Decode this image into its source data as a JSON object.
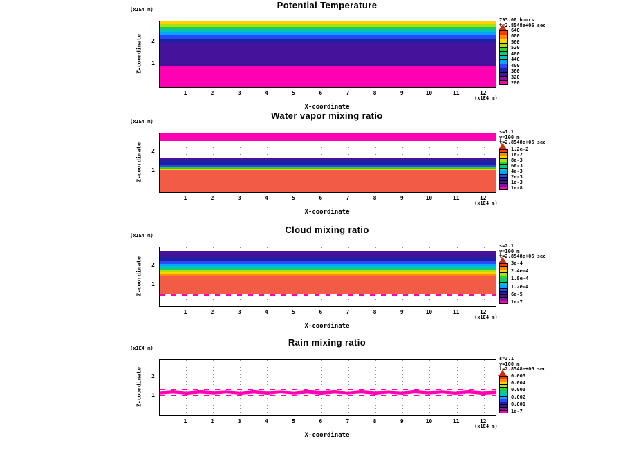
{
  "page": {
    "background": "#ffffff"
  },
  "chart_data": [
    {
      "type": "heatmap",
      "title": "Potential Temperature",
      "xlabel": "X-coordinate",
      "ylabel": "Z-coordinate",
      "x_unit": "(x1E4 m)",
      "y_unit": "(x1E4 m)",
      "x_ticks": [
        "1",
        "2",
        "3",
        "4",
        "5",
        "6",
        "7",
        "8",
        "9",
        "10",
        "11",
        "12"
      ],
      "y_ticks": [
        "2",
        "1"
      ],
      "annotations": [
        "793.00 hours",
        "t=2.8548e+06 sec"
      ],
      "colorbar": {
        "arrow_color": "#d42a10",
        "colors": [
          "#ff3b00",
          "#ff8c00",
          "#ffd300",
          "#a8e015",
          "#2bd12b",
          "#00cc7a",
          "#00c4c4",
          "#00a6ff",
          "#2a49ff",
          "#1f1fa0",
          "#44129b",
          "#8a12a0",
          "#ff00b2"
        ],
        "labels": [
          "640",
          "600",
          "560",
          "520",
          "480",
          "440",
          "400",
          "360",
          "320",
          "280"
        ]
      },
      "bands": [
        {
          "color": "#ffd300",
          "frac": 4
        },
        {
          "color": "#a8e015",
          "frac": 4
        },
        {
          "color": "#2bd12b",
          "frac": 4
        },
        {
          "color": "#00c4c4",
          "frac": 4
        },
        {
          "color": "#00a6ff",
          "frac": 5
        },
        {
          "color": "#2a49ff",
          "frac": 6
        },
        {
          "color": "#1f1fa0",
          "frac": 6
        },
        {
          "color": "#44129b",
          "frac": 34
        },
        {
          "color": "#ff00b2",
          "frac": 33
        }
      ]
    },
    {
      "type": "heatmap",
      "title": "Water vapor mixing ratio",
      "xlabel": "X-coordinate",
      "ylabel": "Z-coordinate",
      "x_unit": "(x1E4 m)",
      "y_unit": "(x1E4 m)",
      "x_ticks": [
        "1",
        "2",
        "3",
        "4",
        "5",
        "6",
        "7",
        "8",
        "9",
        "10",
        "11",
        "12"
      ],
      "y_ticks": [
        "2",
        "1"
      ],
      "annotations": [
        "s=1.1",
        "y=100 m",
        "t=2.8548e+06 sec"
      ],
      "colorbar": {
        "arrow_color": "#d42a10",
        "colors": [
          "#ff3b00",
          "#ff8c00",
          "#ffd300",
          "#a8e015",
          "#2bd12b",
          "#00cc7a",
          "#00c4c4",
          "#00a6ff",
          "#2a49ff",
          "#1f1fa0",
          "#44129b",
          "#8a12a0",
          "#ff00b2"
        ],
        "labels": [
          "1.2e-2",
          "1e-2",
          "8e-3",
          "6e-3",
          "4e-3",
          "2e-3",
          "1e-3",
          "1e-8"
        ]
      },
      "bands": [
        {
          "color": "#ff00b2",
          "frac": 13
        },
        {
          "color": null,
          "frac": 29
        },
        {
          "color": "#44129b",
          "frac": 3
        },
        {
          "color": "#1f1fa0",
          "frac": 9
        },
        {
          "color": "#2a49ff",
          "frac": 2
        },
        {
          "color": "#00a6ff",
          "frac": 2
        },
        {
          "color": "#2bd12b",
          "frac": 2
        },
        {
          "color": "#ffd300",
          "frac": 2
        },
        {
          "color": "#f25c47",
          "frac": 38
        }
      ]
    },
    {
      "type": "heatmap",
      "title": "Cloud mixing ratio",
      "xlabel": "X-coordinate",
      "ylabel": "Z-coordinate",
      "x_unit": "(x1E4 m)",
      "y_unit": "(x1E4 m)",
      "x_ticks": [
        "1",
        "2",
        "3",
        "4",
        "5",
        "6",
        "7",
        "8",
        "9",
        "10",
        "11",
        "12"
      ],
      "y_ticks": [
        "2",
        "1"
      ],
      "annotations": [
        "s=2.1",
        "y=100 m",
        "t=2.8548e+06 sec"
      ],
      "colorbar": {
        "arrow_color": "#d42a10",
        "colors": [
          "#ff3b00",
          "#ff8c00",
          "#ffd300",
          "#a8e015",
          "#2bd12b",
          "#00cc7a",
          "#00c4c4",
          "#00a6ff",
          "#2a49ff",
          "#1f1fa0",
          "#44129b",
          "#8a12a0",
          "#ff00b2"
        ],
        "labels": [
          "3e-4",
          "2.4e-4",
          "1.8e-4",
          "1.2e-4",
          "6e-5",
          "1e-7"
        ]
      },
      "bands": [
        {
          "color": null,
          "frac": 6
        },
        {
          "color": "#44129b",
          "frac": 10
        },
        {
          "color": "#1f1fa0",
          "frac": 7
        },
        {
          "color": "#2a49ff",
          "frac": 5
        },
        {
          "color": "#00a6ff",
          "frac": 4
        },
        {
          "color": "#00c4c4",
          "frac": 4
        },
        {
          "color": "#2bd12b",
          "frac": 3
        },
        {
          "color": "#a8e015",
          "frac": 3
        },
        {
          "color": "#ffd300",
          "frac": 3
        },
        {
          "color": "#ff8c00",
          "frac": 4
        },
        {
          "color": "#f25c47",
          "frac": 31
        },
        {
          "color": "#ff00b2",
          "frac": 3,
          "pattern": "dots"
        },
        {
          "color": null,
          "frac": 17
        }
      ]
    },
    {
      "type": "heatmap",
      "title": "Rain mixing ratio",
      "xlabel": "X-coordinate",
      "ylabel": "Z-coordinate",
      "x_unit": "(x1E4 m)",
      "y_unit": "(x1E4 m)",
      "x_ticks": [
        "1",
        "2",
        "3",
        "4",
        "5",
        "6",
        "7",
        "8",
        "9",
        "10",
        "11",
        "12"
      ],
      "y_ticks": [
        "2",
        "1"
      ],
      "annotations": [
        "s=3.1",
        "y=100 m",
        "t=2.8548e+06 sec"
      ],
      "colorbar": {
        "arrow_color": "#d42a10",
        "colors": [
          "#ff3b00",
          "#ff8c00",
          "#ffd300",
          "#a8e015",
          "#2bd12b",
          "#00cc7a",
          "#00c4c4",
          "#00a6ff",
          "#2a49ff",
          "#1f1fa0",
          "#44129b",
          "#8a12a0",
          "#ff00b2"
        ],
        "labels": [
          "0.005",
          "0.004",
          "0.003",
          "0.002",
          "0.001",
          "1e-7"
        ]
      },
      "bands": [
        {
          "color": null,
          "frac": 52
        },
        {
          "color": "#ff00b2",
          "frac": 2,
          "pattern": "dots"
        },
        {
          "color": "#ff00b2",
          "frac": 9,
          "pattern": "jag"
        },
        {
          "color": "#ff00b2",
          "frac": 2,
          "pattern": "dots"
        },
        {
          "color": null,
          "frac": 35
        }
      ]
    }
  ]
}
